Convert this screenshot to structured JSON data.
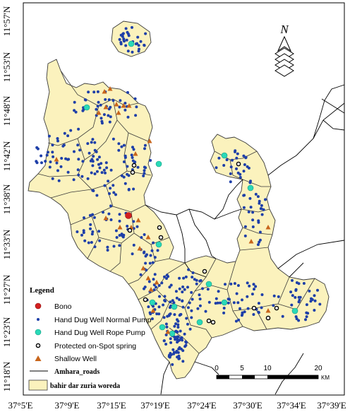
{
  "map": {
    "lat_labels": [
      "11°57'N",
      "11°53'N",
      "11°48'N",
      "11°42'N",
      "11°38'N",
      "11°33'N",
      "11°27'N",
      "11°23'N",
      "11°18'N"
    ],
    "lon_labels": [
      "37°5'E",
      "37°9'E",
      "37°15'E",
      "37°19'E",
      "37°24'E",
      "37°30'E",
      "37°34'E",
      "37°39'E"
    ],
    "north_label": "N",
    "colors": {
      "woreda_fill": "#fbf2bd",
      "boundary": "#3a3a3a",
      "road": "#000000",
      "normal_pump": "#1e3fa8",
      "rope_pump": "#2ad9b8",
      "bono": "#d32020",
      "shallow_well": "#c8651b",
      "spring": "#000000"
    }
  },
  "legend": {
    "title": "Legend",
    "items": [
      {
        "symbol": "bono",
        "label": "Bono"
      },
      {
        "symbol": "normal_pump",
        "label": "Hand Dug Well Normal Pump"
      },
      {
        "symbol": "rope_pump",
        "label": "Hand Dug Well Rope Pump"
      },
      {
        "symbol": "spring",
        "label": "Protected on-Spot spring"
      },
      {
        "symbol": "shallow_well",
        "label": "Shallow Well"
      },
      {
        "symbol": "road",
        "label": "Amhara_roads"
      },
      {
        "symbol": "woreda",
        "label": "bahir dar zuria woreda"
      }
    ]
  },
  "scalebar": {
    "ticks": [
      "0",
      "5",
      "10",
      "20"
    ],
    "unit": "KM"
  }
}
